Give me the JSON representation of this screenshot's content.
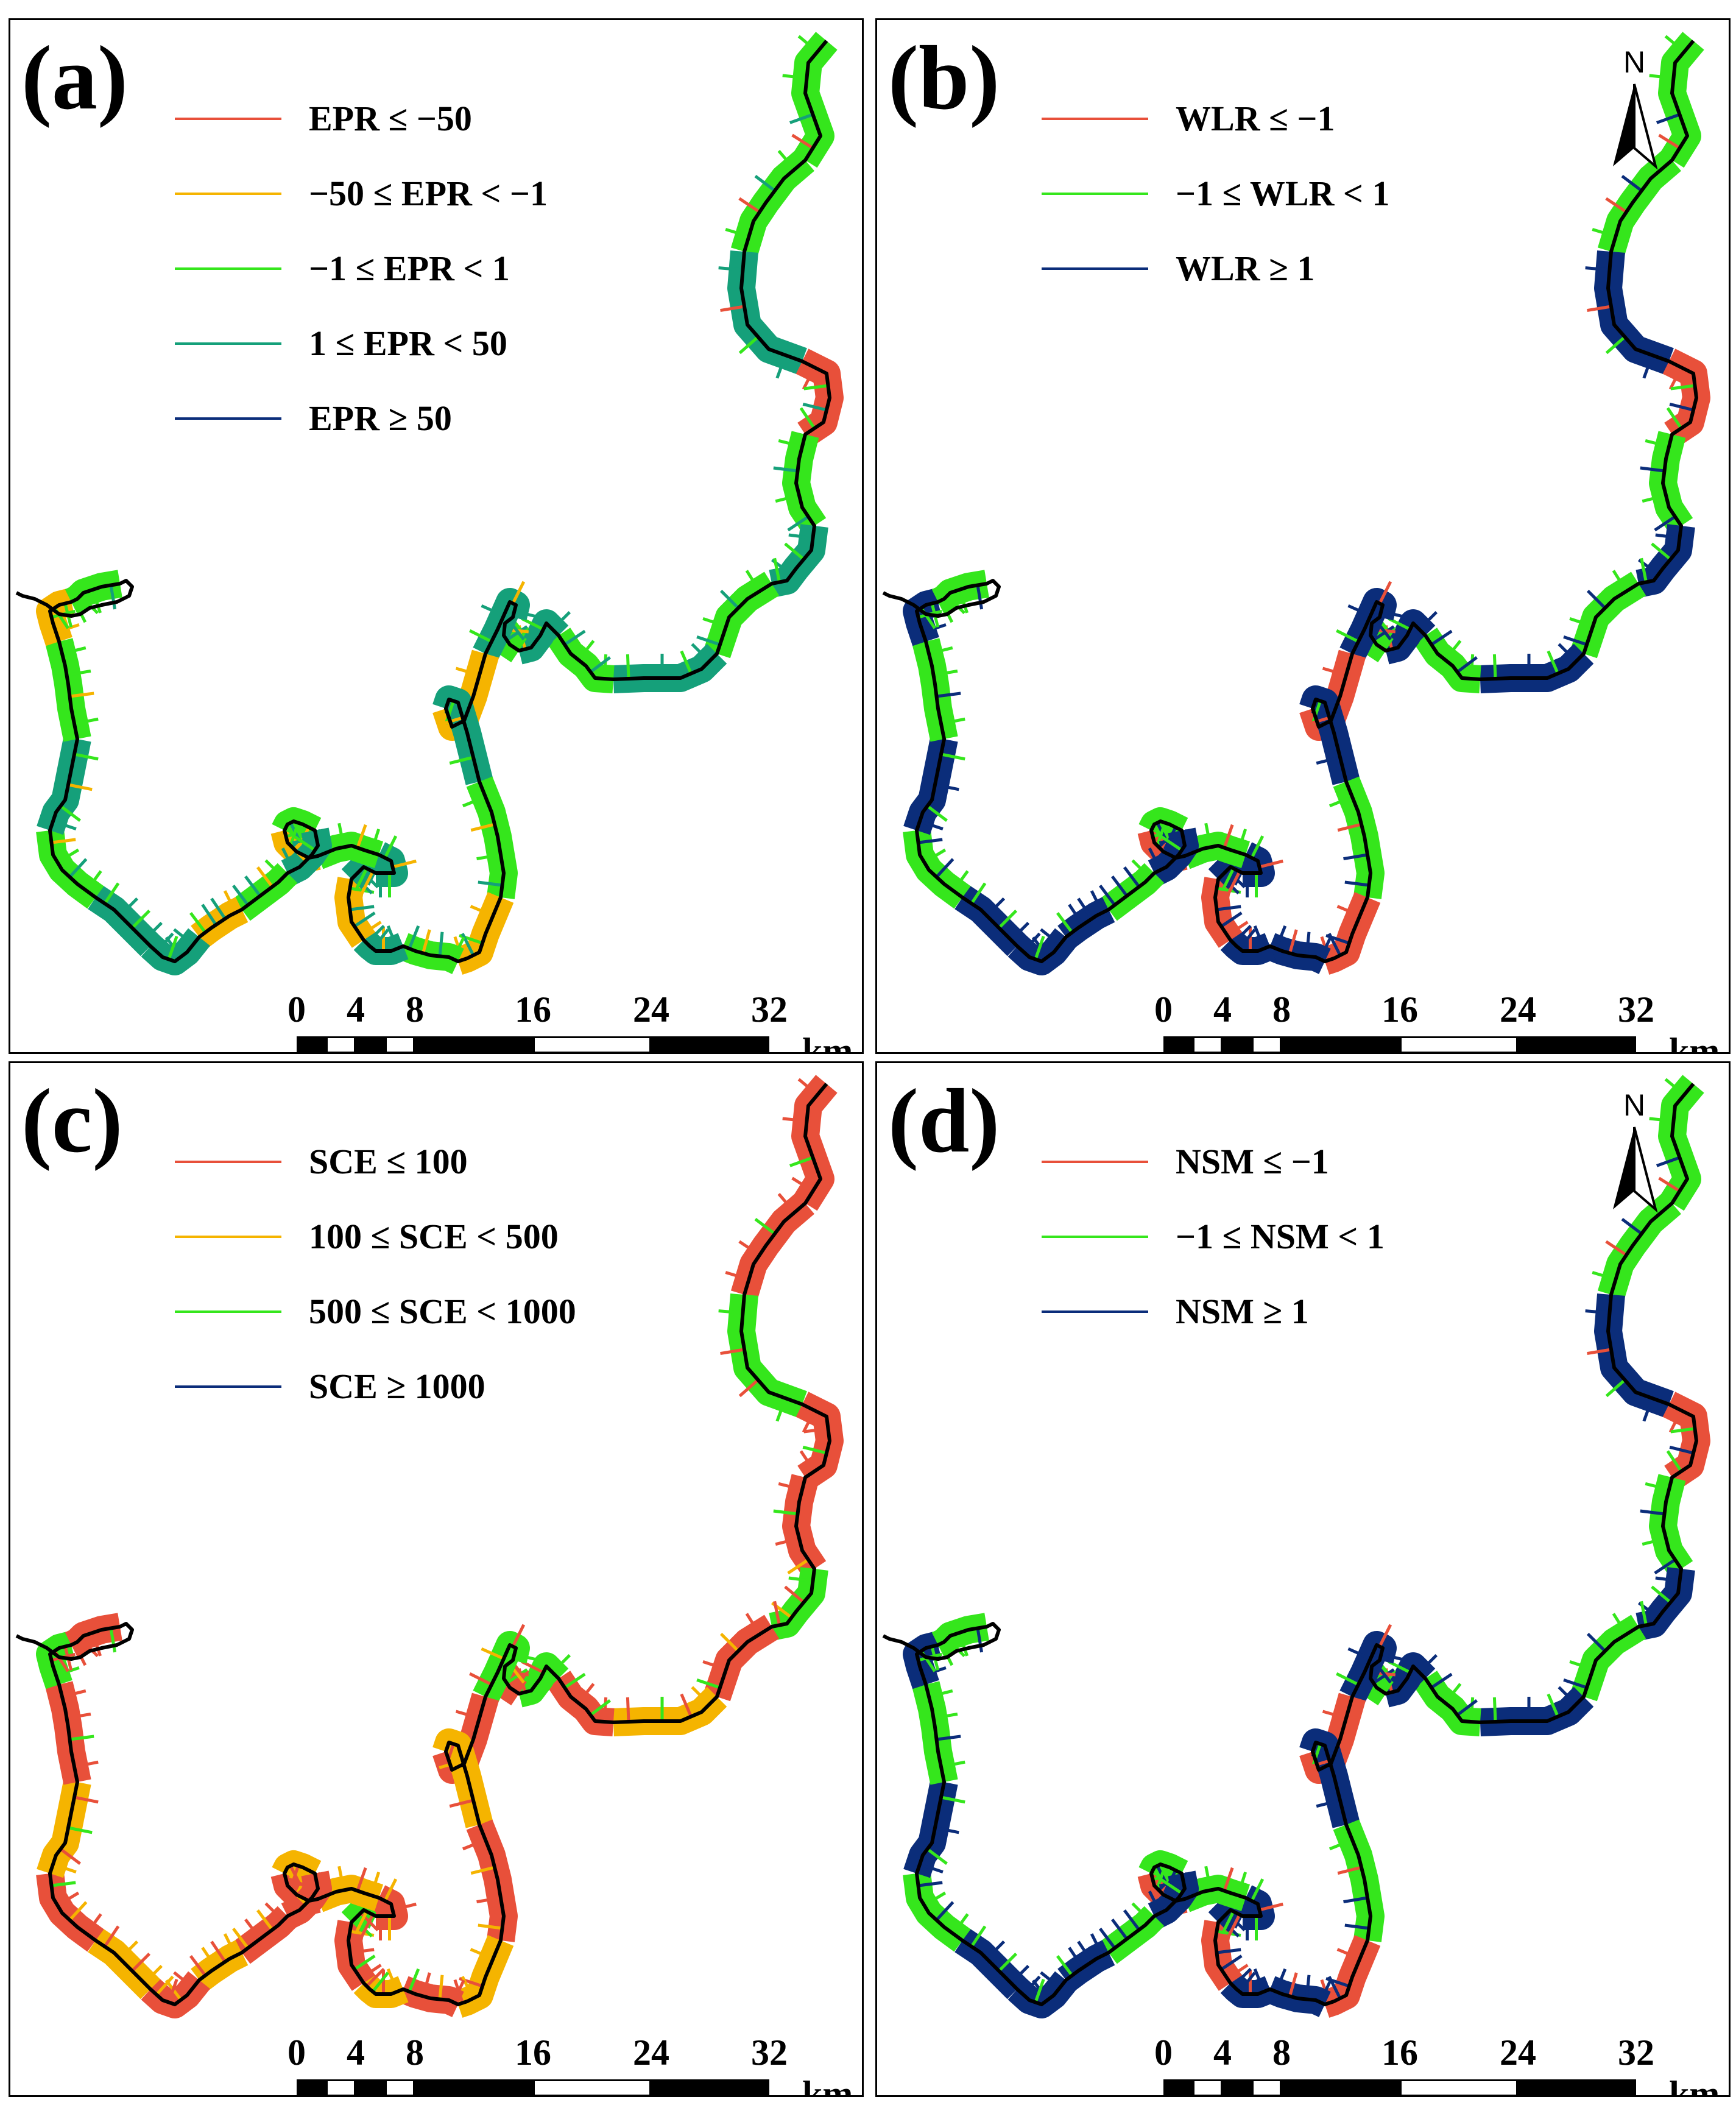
{
  "panels": [
    {
      "label": "(a)",
      "show_north": false,
      "legend": [
        {
          "text": "EPR ≤ −50",
          "color": "#e8503a"
        },
        {
          "text": "−50 ≤ EPR < −1",
          "color": "#f5b400"
        },
        {
          "text": "−1 ≤ EPR < 1",
          "color": "#35e61c"
        },
        {
          "text": "1 ≤ EPR < 50",
          "color": "#15a07a"
        },
        {
          "text": "EPR ≥ 50",
          "color": "#0b2d7a"
        }
      ],
      "segment_colors": [
        "#35e61c",
        "#35e61c",
        "#15a07a",
        "#e8503a",
        "#35e61c",
        "#15a07a",
        "#35e61c",
        "#15a07a",
        "#35e61c",
        "#15a07a",
        "#35e61c",
        "#15a07a",
        "#f5b400",
        "#15a07a",
        "#35e61c",
        "#f5b400",
        "#35e61c",
        "#15a07a",
        "#f5b400",
        "#15a07a",
        "#15a07a",
        "#35e61c",
        "#f5b400",
        "#35e61c",
        "#15a07a",
        "#35e61c",
        "#f5b400",
        "#15a07a",
        "#15a07a",
        "#35e61c",
        "#15a07a",
        "#35e61c",
        "#f5b400",
        "#35e61c"
      ]
    },
    {
      "label": "(b)",
      "show_north": true,
      "legend": [
        {
          "text": "WLR ≤ −1",
          "color": "#e8503a"
        },
        {
          "text": "−1 ≤ WLR < 1",
          "color": "#35e61c"
        },
        {
          "text": "WLR ≥ 1",
          "color": "#0b2d7a"
        }
      ],
      "segment_colors": [
        "#35e61c",
        "#35e61c",
        "#0b2d7a",
        "#e8503a",
        "#35e61c",
        "#0b2d7a",
        "#35e61c",
        "#0b2d7a",
        "#35e61c",
        "#0b2d7a",
        "#35e61c",
        "#0b2d7a",
        "#e8503a",
        "#0b2d7a",
        "#35e61c",
        "#e8503a",
        "#0b2d7a",
        "#0b2d7a",
        "#e8503a",
        "#0b2d7a",
        "#0b2d7a",
        "#35e61c",
        "#e8503a",
        "#35e61c",
        "#0b2d7a",
        "#35e61c",
        "#0b2d7a",
        "#0b2d7a",
        "#0b2d7a",
        "#35e61c",
        "#0b2d7a",
        "#35e61c",
        "#0b2d7a",
        "#35e61c"
      ]
    },
    {
      "label": "(c)",
      "show_north": false,
      "legend": [
        {
          "text": "SCE ≤ 100",
          "color": "#e8503a"
        },
        {
          "text": "100 ≤ SCE < 500",
          "color": "#f5b400"
        },
        {
          "text": "500 ≤ SCE < 1000",
          "color": "#35e61c"
        },
        {
          "text": "SCE ≥ 1000",
          "color": "#0b2d7a"
        }
      ],
      "segment_colors": [
        "#e8503a",
        "#e8503a",
        "#35e61c",
        "#e8503a",
        "#e8503a",
        "#35e61c",
        "#e8503a",
        "#f5b400",
        "#e8503a",
        "#35e61c",
        "#e8503a",
        "#35e61c",
        "#e8503a",
        "#f5b400",
        "#e8503a",
        "#f5b400",
        "#e8503a",
        "#f5b400",
        "#e8503a",
        "#35e61c",
        "#e8503a",
        "#f5b400",
        "#e8503a",
        "#f5b400",
        "#e8503a",
        "#e8503a",
        "#f5b400",
        "#e8503a",
        "#f5b400",
        "#e8503a",
        "#f5b400",
        "#e8503a",
        "#35e61c",
        "#e8503a"
      ]
    },
    {
      "label": "(d)",
      "show_north": true,
      "legend": [
        {
          "text": "NSM ≤ −1",
          "color": "#e8503a"
        },
        {
          "text": "−1 ≤ NSM < 1",
          "color": "#35e61c"
        },
        {
          "text": "NSM ≥ 1",
          "color": "#0b2d7a"
        }
      ],
      "segment_colors": [
        "#35e61c",
        "#35e61c",
        "#0b2d7a",
        "#e8503a",
        "#35e61c",
        "#0b2d7a",
        "#35e61c",
        "#0b2d7a",
        "#35e61c",
        "#0b2d7a",
        "#35e61c",
        "#0b2d7a",
        "#e8503a",
        "#0b2d7a",
        "#35e61c",
        "#e8503a",
        "#0b2d7a",
        "#0b2d7a",
        "#e8503a",
        "#0b2d7a",
        "#0b2d7a",
        "#35e61c",
        "#e8503a",
        "#35e61c",
        "#0b2d7a",
        "#35e61c",
        "#0b2d7a",
        "#0b2d7a",
        "#0b2d7a",
        "#35e61c",
        "#0b2d7a",
        "#35e61c",
        "#0b2d7a",
        "#35e61c"
      ]
    }
  ],
  "north_label": "N",
  "scale": {
    "ticks": [
      "0",
      "4",
      "8",
      "16",
      "24",
      "32"
    ],
    "unit": "km"
  }
}
